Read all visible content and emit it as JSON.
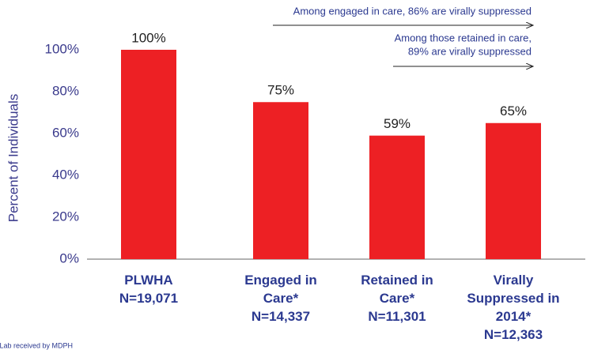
{
  "chart_data": {
    "type": "bar",
    "y_label": "Percent of Individuals",
    "categories": [
      [
        "PLWHA",
        "N=19,071"
      ],
      [
        "Engaged in",
        "Care*",
        "N=14,337"
      ],
      [
        "Retained in",
        "Care*",
        "N=11,301"
      ],
      [
        "Virally",
        "Suppressed in",
        "2014*",
        "N=12,363"
      ]
    ],
    "values": [
      100,
      75,
      59,
      65
    ],
    "value_labels": [
      "100%",
      "75%",
      "59%",
      "65%"
    ],
    "color": "#ed2024",
    "ylim": [
      0,
      100
    ],
    "yticks": [
      {
        "value": 0,
        "label": "0%"
      },
      {
        "value": 20,
        "label": "20%"
      },
      {
        "value": 40,
        "label": "40%"
      },
      {
        "value": 60,
        "label": "60%"
      },
      {
        "value": 80,
        "label": "80%"
      },
      {
        "value": 100,
        "label": "100%"
      }
    ],
    "annotations": [
      {
        "lines": [
          "Among engaged in care, 86% are virally suppressed"
        ]
      },
      {
        "lines": [
          "Among those retained in care,",
          "89% are virally suppressed"
        ]
      }
    ],
    "footnote": "*Lab received by MDPH"
  }
}
